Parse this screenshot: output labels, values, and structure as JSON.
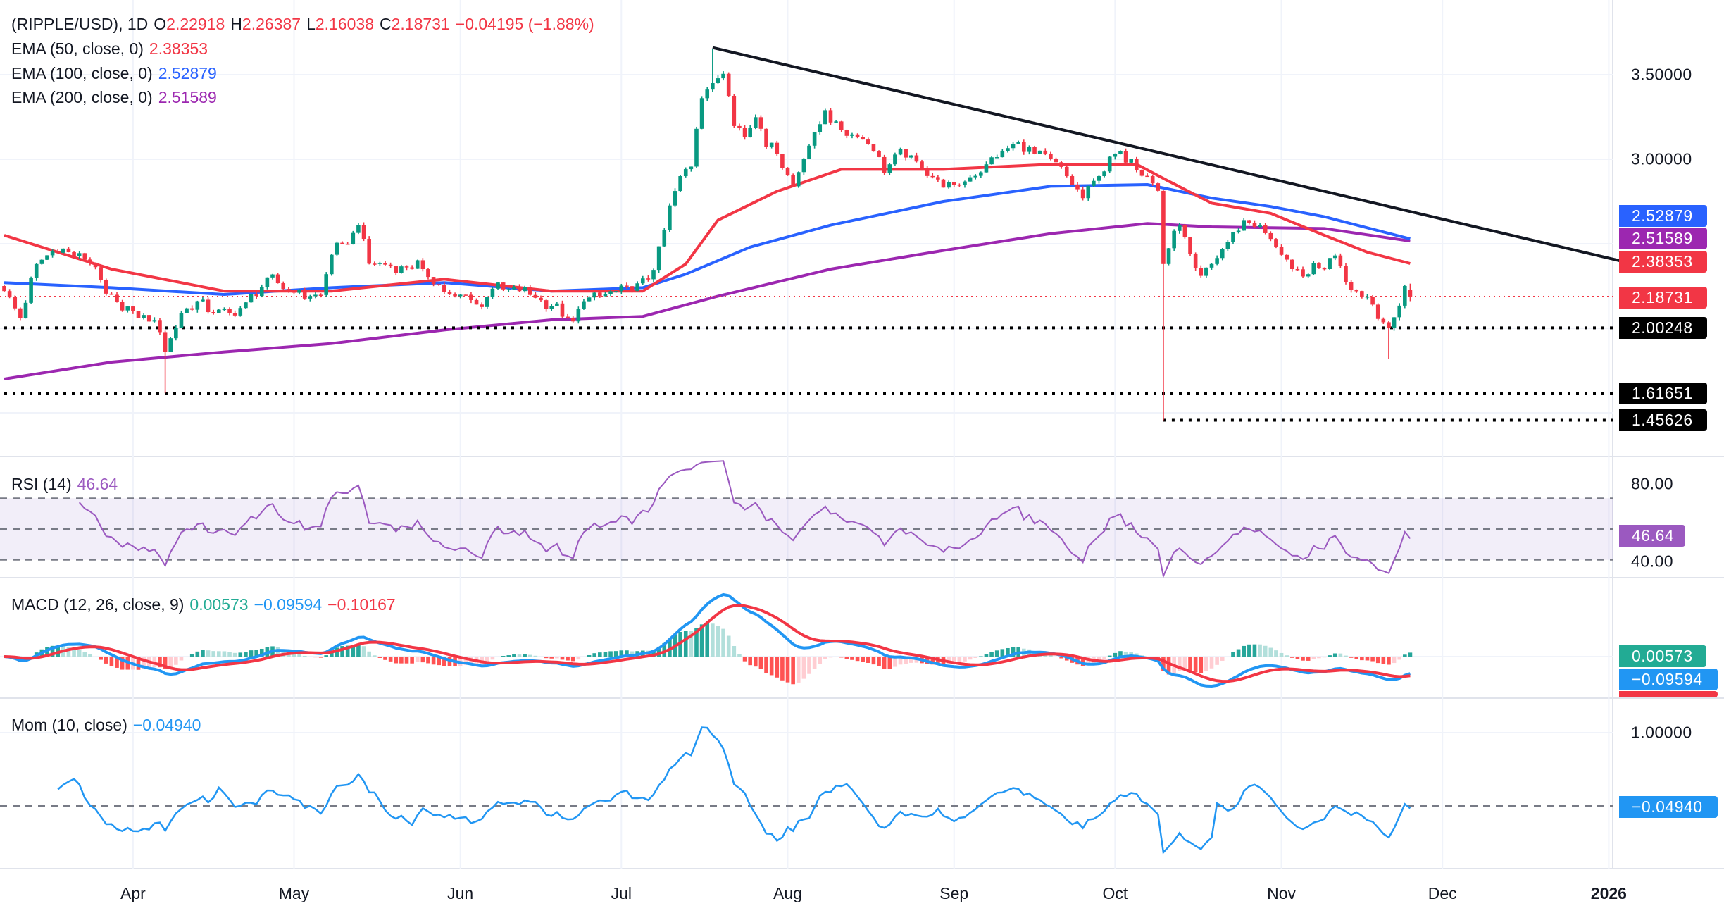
{
  "header": {
    "symbol": "(RIPPLE/USD), 1D",
    "open_label": "O",
    "open": "2.22918",
    "high_label": "H",
    "high": "2.26387",
    "low_label": "L",
    "low": "2.16038",
    "close_label": "C",
    "close": "2.18731",
    "change": "−0.04195 (−1.88%)"
  },
  "indicators": {
    "ema50": {
      "label": "EMA (50, close, 0)",
      "value": "2.38353",
      "color": "#f23645"
    },
    "ema100": {
      "label": "EMA (100, close, 0)",
      "value": "2.52879",
      "color": "#2962ff"
    },
    "ema200": {
      "label": "EMA (200, close, 0)",
      "value": "2.51589",
      "color": "#9c27b0"
    },
    "rsi": {
      "label": "RSI (14)",
      "value": "46.64",
      "color": "#9b59c0"
    },
    "macd": {
      "label": "MACD (12, 26, close, 9)",
      "histogram": "0.00573",
      "macd": "−0.09594",
      "signal": "−0.10167"
    },
    "mom": {
      "label": "Mom (10, close)",
      "value": "−0.04940",
      "color": "#2196f3"
    }
  },
  "price_axis": {
    "ticks": [
      "3.50000",
      "3.00000"
    ]
  },
  "rsi_axis": {
    "ticks": [
      "80.00",
      "40.00"
    ]
  },
  "mom_axis": {
    "ticks": [
      "1.00000"
    ]
  },
  "badges": {
    "ema100": "2.52879",
    "ema200": "2.51589",
    "ema50": "2.38353",
    "last_price": "2.18731",
    "support_1": "2.00248",
    "support_2": "1.61651",
    "support_3": "1.45626",
    "rsi": "46.64",
    "macd_hist": "0.00573",
    "macd": "−0.09594",
    "mom": "−0.04940"
  },
  "x_axis": [
    {
      "label": "Apr",
      "date": "2025-04-01"
    },
    {
      "label": "May",
      "date": "2025-05-01"
    },
    {
      "label": "Jun",
      "date": "2025-06-01"
    },
    {
      "label": "Jul",
      "date": "2025-07-01"
    },
    {
      "label": "Aug",
      "date": "2025-08-01"
    },
    {
      "label": "Sep",
      "date": "2025-09-01"
    },
    {
      "label": "Oct",
      "date": "2025-10-01"
    },
    {
      "label": "Nov",
      "date": "2025-11-01"
    },
    {
      "label": "Dec",
      "date": "2025-12-01"
    },
    {
      "label": "2026",
      "date": "2026-01-01"
    }
  ],
  "chart_data": {
    "type": "candlestick",
    "colors": {
      "up": "#089981",
      "down": "#f23645"
    },
    "price_range": [
      1.35,
      3.9
    ],
    "closes": [
      [
        "2025-03-08",
        2.22
      ],
      [
        "2025-03-11",
        2.06
      ],
      [
        "2025-03-14",
        2.38
      ],
      [
        "2025-03-18",
        2.48
      ],
      [
        "2025-03-22",
        2.42
      ],
      [
        "2025-03-25",
        2.38
      ],
      [
        "2025-03-27",
        2.19
      ],
      [
        "2025-03-31",
        2.12
      ],
      [
        "2025-04-03",
        2.06
      ],
      [
        "2025-04-06",
        2.0
      ],
      [
        "2025-04-07",
        1.86
      ],
      [
        "2025-04-10",
        2.09
      ],
      [
        "2025-04-13",
        2.16
      ],
      [
        "2025-04-16",
        2.09
      ],
      [
        "2025-04-19",
        2.09
      ],
      [
        "2025-04-21",
        2.12
      ],
      [
        "2025-04-24",
        2.22
      ],
      [
        "2025-04-27",
        2.29
      ],
      [
        "2025-04-30",
        2.22
      ],
      [
        "2025-05-03",
        2.19
      ],
      [
        "2025-05-06",
        2.19
      ],
      [
        "2025-05-08",
        2.45
      ],
      [
        "2025-05-12",
        2.55
      ],
      [
        "2025-05-13",
        2.61
      ],
      [
        "2025-05-15",
        2.38
      ],
      [
        "2025-05-18",
        2.38
      ],
      [
        "2025-05-21",
        2.35
      ],
      [
        "2025-05-24",
        2.38
      ],
      [
        "2025-05-27",
        2.29
      ],
      [
        "2025-05-30",
        2.19
      ],
      [
        "2025-06-02",
        2.19
      ],
      [
        "2025-06-05",
        2.12
      ],
      [
        "2025-06-07",
        2.25
      ],
      [
        "2025-06-10",
        2.22
      ],
      [
        "2025-06-13",
        2.22
      ],
      [
        "2025-06-16",
        2.16
      ],
      [
        "2025-06-19",
        2.12
      ],
      [
        "2025-06-22",
        2.03
      ],
      [
        "2025-06-24",
        2.16
      ],
      [
        "2025-06-27",
        2.19
      ],
      [
        "2025-06-30",
        2.22
      ],
      [
        "2025-07-03",
        2.22
      ],
      [
        "2025-07-06",
        2.29
      ],
      [
        "2025-07-08",
        2.45
      ],
      [
        "2025-07-10",
        2.71
      ],
      [
        "2025-07-12",
        2.9
      ],
      [
        "2025-07-14",
        2.97
      ],
      [
        "2025-07-16",
        3.39
      ],
      [
        "2025-07-18",
        3.45
      ],
      [
        "2025-07-20",
        3.52
      ],
      [
        "2025-07-22",
        3.23
      ],
      [
        "2025-07-24",
        3.13
      ],
      [
        "2025-07-26",
        3.26
      ],
      [
        "2025-07-28",
        3.1
      ],
      [
        "2025-07-30",
        3.03
      ],
      [
        "2025-08-02",
        2.84
      ],
      [
        "2025-08-04",
        3.03
      ],
      [
        "2025-08-06",
        3.13
      ],
      [
        "2025-08-08",
        3.29
      ],
      [
        "2025-08-10",
        3.19
      ],
      [
        "2025-08-12",
        3.16
      ],
      [
        "2025-08-14",
        3.13
      ],
      [
        "2025-08-16",
        3.1
      ],
      [
        "2025-08-19",
        2.94
      ],
      [
        "2025-08-22",
        3.03
      ],
      [
        "2025-08-25",
        2.97
      ],
      [
        "2025-08-28",
        2.9
      ],
      [
        "2025-08-31",
        2.84
      ],
      [
        "2025-09-03",
        2.87
      ],
      [
        "2025-09-06",
        2.94
      ],
      [
        "2025-09-09",
        3.03
      ],
      [
        "2025-09-13",
        3.1
      ],
      [
        "2025-09-16",
        3.03
      ],
      [
        "2025-09-19",
        3.0
      ],
      [
        "2025-09-22",
        2.9
      ],
      [
        "2025-09-25",
        2.77
      ],
      [
        "2025-09-28",
        2.9
      ],
      [
        "2025-10-01",
        3.03
      ],
      [
        "2025-10-04",
        3.0
      ],
      [
        "2025-10-07",
        2.9
      ],
      [
        "2025-10-09",
        2.81
      ],
      [
        "2025-10-10",
        2.38
      ],
      [
        "2025-10-11",
        2.48
      ],
      [
        "2025-10-13",
        2.61
      ],
      [
        "2025-10-15",
        2.42
      ],
      [
        "2025-10-17",
        2.29
      ],
      [
        "2025-10-19",
        2.38
      ],
      [
        "2025-10-22",
        2.51
      ],
      [
        "2025-10-25",
        2.64
      ],
      [
        "2025-10-28",
        2.61
      ],
      [
        "2025-10-30",
        2.51
      ],
      [
        "2025-11-01",
        2.45
      ],
      [
        "2025-11-03",
        2.35
      ],
      [
        "2025-11-05",
        2.29
      ],
      [
        "2025-11-07",
        2.35
      ],
      [
        "2025-11-09",
        2.35
      ],
      [
        "2025-11-11",
        2.45
      ],
      [
        "2025-11-13",
        2.29
      ],
      [
        "2025-11-15",
        2.22
      ],
      [
        "2025-11-17",
        2.19
      ],
      [
        "2025-11-19",
        2.09
      ],
      [
        "2025-11-21",
        2.0
      ],
      [
        "2025-11-22",
        2.06
      ],
      [
        "2025-11-24",
        2.25
      ],
      [
        "2025-11-25",
        2.18731
      ]
    ],
    "wick_extremes": [
      {
        "date": "2025-04-07",
        "low": 1.6165
      },
      {
        "date": "2025-07-18",
        "high": 3.65
      },
      {
        "date": "2025-10-10",
        "low": 1.45626
      },
      {
        "date": "2025-11-21",
        "low": 1.82
      }
    ],
    "ema_series": {
      "ema50": [
        [
          "2025-03-08",
          2.55
        ],
        [
          "2025-03-28",
          2.35
        ],
        [
          "2025-04-18",
          2.22
        ],
        [
          "2025-05-08",
          2.22
        ],
        [
          "2025-05-29",
          2.29
        ],
        [
          "2025-06-18",
          2.22
        ],
        [
          "2025-07-05",
          2.22
        ],
        [
          "2025-07-13",
          2.38
        ],
        [
          "2025-07-19",
          2.64
        ],
        [
          "2025-07-30",
          2.81
        ],
        [
          "2025-08-11",
          2.94
        ],
        [
          "2025-08-30",
          2.94
        ],
        [
          "2025-09-19",
          2.97
        ],
        [
          "2025-10-05",
          2.97
        ],
        [
          "2025-10-11",
          2.87
        ],
        [
          "2025-10-19",
          2.74
        ],
        [
          "2025-10-30",
          2.68
        ],
        [
          "2025-11-09",
          2.55
        ],
        [
          "2025-11-17",
          2.45
        ],
        [
          "2025-11-25",
          2.38353
        ]
      ],
      "ema100": [
        [
          "2025-03-08",
          2.27
        ],
        [
          "2025-03-28",
          2.24
        ],
        [
          "2025-04-18",
          2.2
        ],
        [
          "2025-05-08",
          2.24
        ],
        [
          "2025-05-29",
          2.27
        ],
        [
          "2025-06-18",
          2.22
        ],
        [
          "2025-07-05",
          2.24
        ],
        [
          "2025-07-13",
          2.32
        ],
        [
          "2025-07-25",
          2.48
        ],
        [
          "2025-08-09",
          2.61
        ],
        [
          "2025-08-30",
          2.75
        ],
        [
          "2025-09-19",
          2.84
        ],
        [
          "2025-10-07",
          2.85
        ],
        [
          "2025-10-19",
          2.77
        ],
        [
          "2025-10-30",
          2.72
        ],
        [
          "2025-11-09",
          2.66
        ],
        [
          "2025-11-25",
          2.52879
        ]
      ],
      "ema200": [
        [
          "2025-03-08",
          1.7
        ],
        [
          "2025-03-28",
          1.8
        ],
        [
          "2025-04-18",
          1.86
        ],
        [
          "2025-05-08",
          1.91
        ],
        [
          "2025-05-29",
          1.99
        ],
        [
          "2025-06-18",
          2.05
        ],
        [
          "2025-07-05",
          2.07
        ],
        [
          "2025-07-19",
          2.19
        ],
        [
          "2025-08-09",
          2.35
        ],
        [
          "2025-08-30",
          2.46
        ],
        [
          "2025-09-19",
          2.56
        ],
        [
          "2025-10-07",
          2.62
        ],
        [
          "2025-10-19",
          2.6
        ],
        [
          "2025-11-09",
          2.59
        ],
        [
          "2025-11-25",
          2.51589
        ]
      ]
    },
    "trendline": [
      [
        "2025-07-18",
        3.66
      ],
      [
        "2026-01-03",
        2.4
      ]
    ],
    "horizontal_levels": [
      {
        "value": 2.00248,
        "from": "2025-03-08"
      },
      {
        "value": 1.61651,
        "from": "2025-03-08"
      },
      {
        "value": 1.45626,
        "from": "2025-10-10"
      }
    ],
    "rsi_bands": [
      30,
      50,
      70
    ]
  }
}
